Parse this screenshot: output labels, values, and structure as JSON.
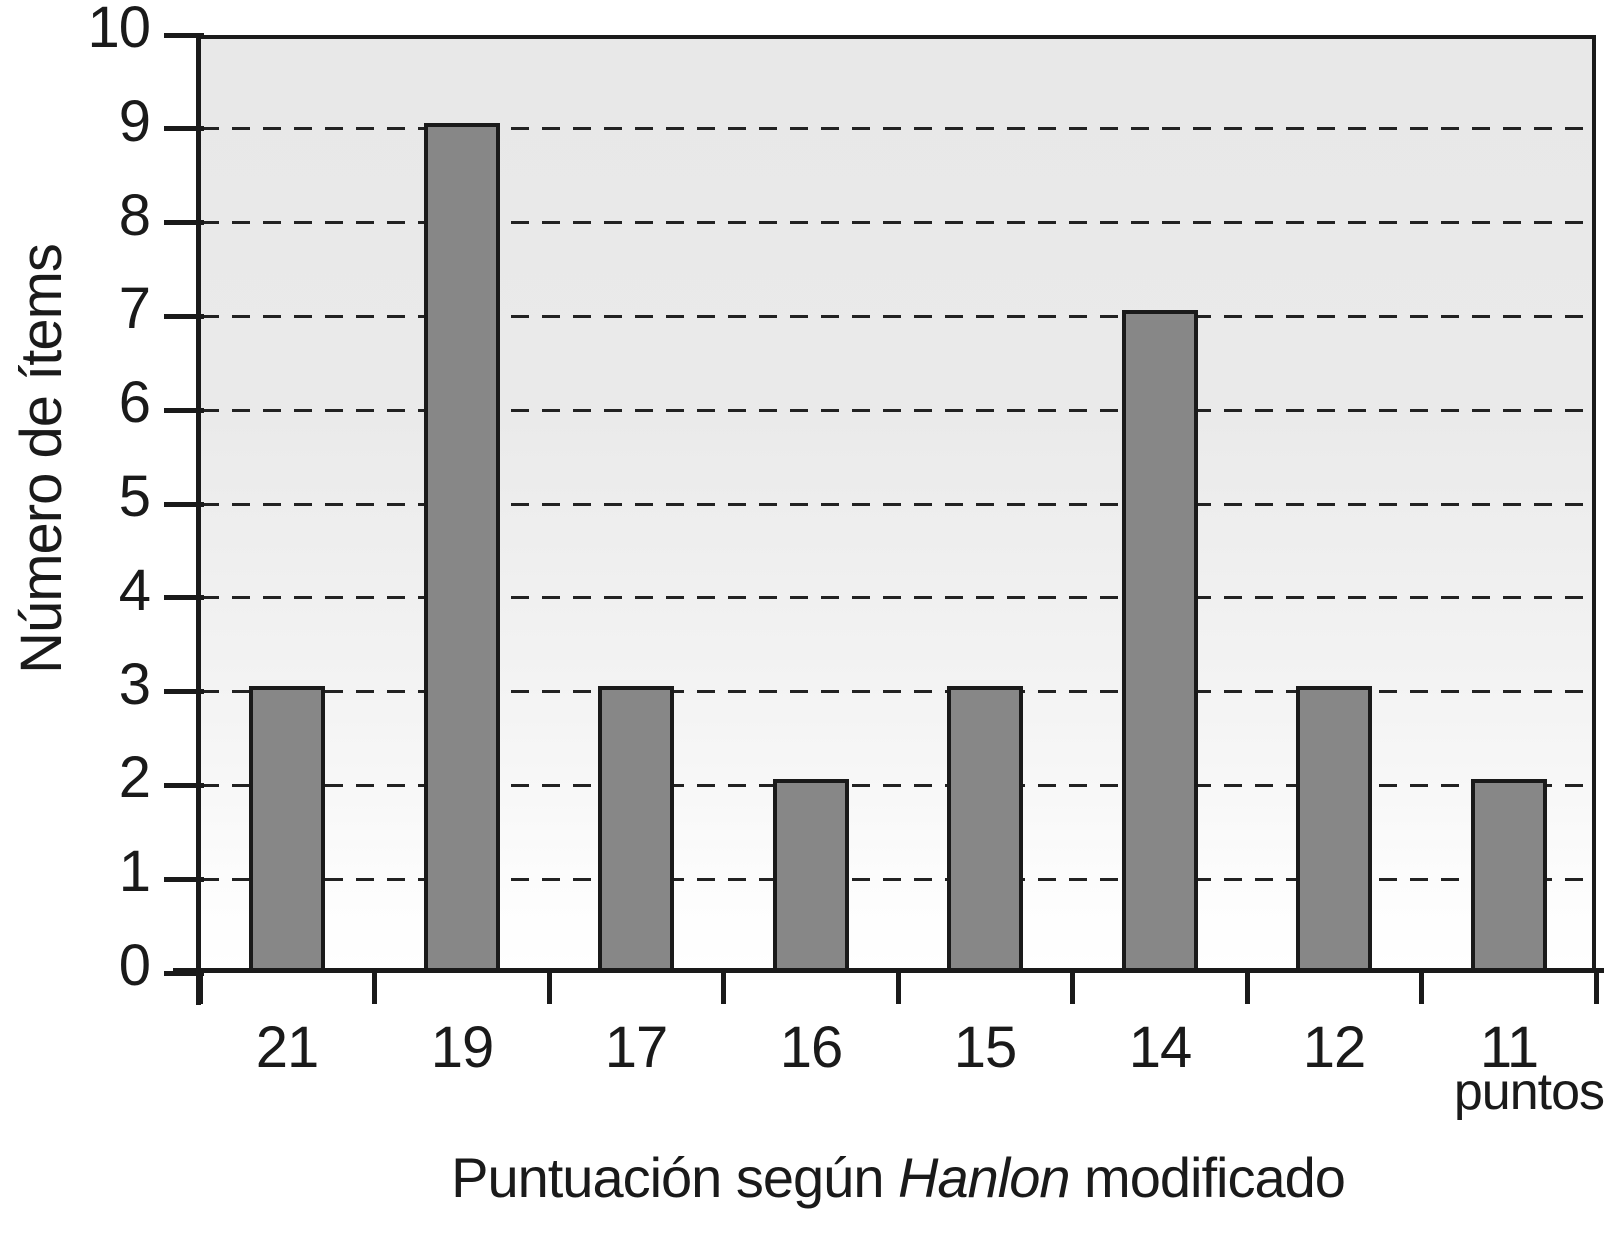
{
  "chart_data": {
    "type": "bar",
    "title": "",
    "categories": [
      "21",
      "19",
      "17",
      "16",
      "15",
      "14",
      "12",
      "11"
    ],
    "values": [
      3,
      9,
      3,
      2,
      3,
      7,
      3,
      2
    ],
    "xlabel": "Puntuación según Hanlon modificado",
    "ylabel": "Número de ítems",
    "x_unit_label": "puntos",
    "ylim": [
      0,
      10
    ],
    "yticks": [
      0,
      1,
      2,
      3,
      4,
      5,
      6,
      7,
      8,
      9,
      10
    ],
    "grid": {
      "horizontal": true,
      "style": "dashed",
      "at": [
        1,
        2,
        3,
        4,
        5,
        6,
        7,
        8,
        9
      ]
    },
    "legend": "none",
    "colors": {
      "bar_fill": "#878787",
      "bar_outline": "#1a1a1a",
      "axis": "#1a1a1a",
      "gridline": "#222222",
      "plot_bg_top": "#e8e8e8",
      "plot_bg_bottom": "#ffffff",
      "text": "#1a1a1a"
    }
  },
  "x_title": {
    "pre": "Puntuación según ",
    "italic": "Hanlon",
    "post": " modificado"
  }
}
